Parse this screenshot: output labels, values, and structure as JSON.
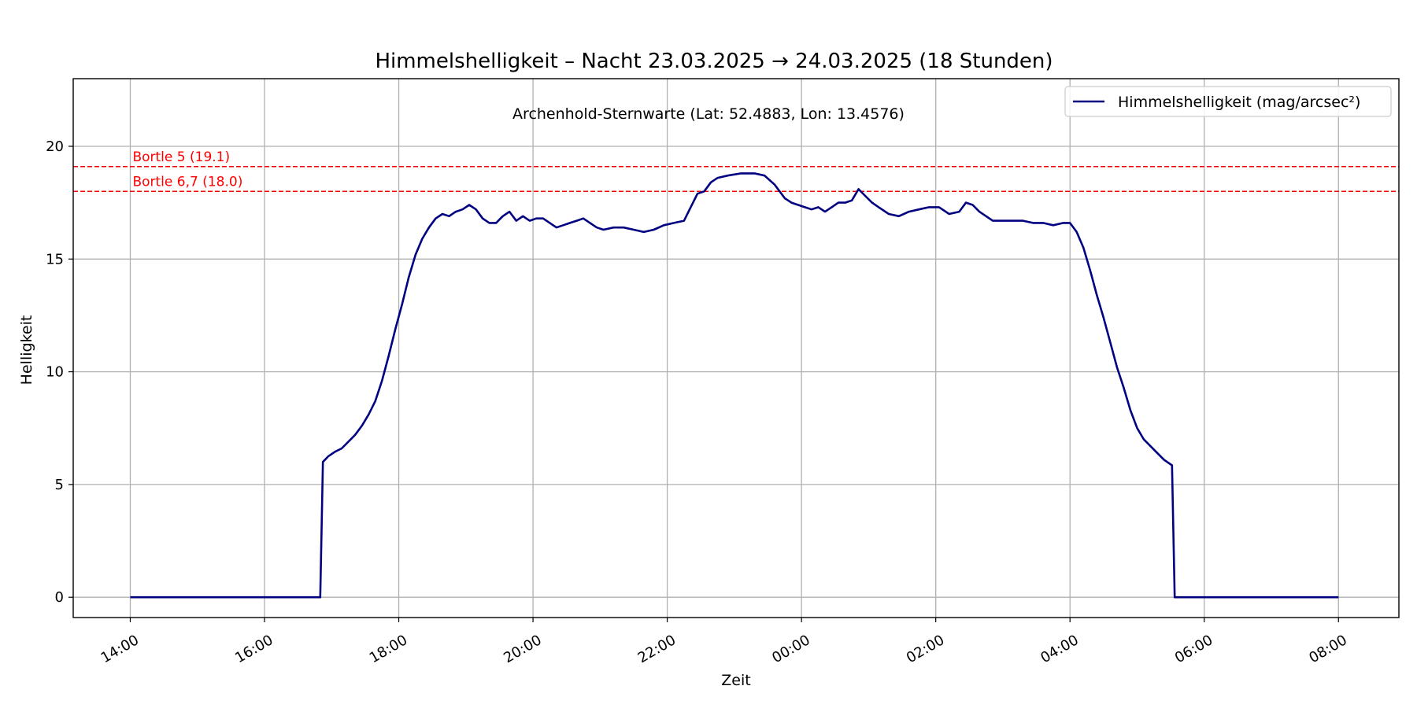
{
  "chart_data": {
    "type": "line",
    "title": "Himmelshelligkeit – Nacht 23.03.2025 → 24.03.2025 (18 Stunden)",
    "subtitle": "Archenhold-Sternwarte (Lat: 52.4883, Lon: 13.4576)",
    "xlabel": "Zeit",
    "ylabel": "Helligkeit",
    "x_unit": "hours since 23.03.2025 00:00",
    "xlim": [
      13.15,
      32.9
    ],
    "ylim": [
      -0.9,
      23.0
    ],
    "x_ticks": [
      {
        "x": 14,
        "label": "14:00"
      },
      {
        "x": 16,
        "label": "16:00"
      },
      {
        "x": 18,
        "label": "18:00"
      },
      {
        "x": 20,
        "label": "20:00"
      },
      {
        "x": 22,
        "label": "22:00"
      },
      {
        "x": 24,
        "label": "00:00"
      },
      {
        "x": 26,
        "label": "02:00"
      },
      {
        "x": 28,
        "label": "04:00"
      },
      {
        "x": 30,
        "label": "06:00"
      },
      {
        "x": 32,
        "label": "08:00"
      }
    ],
    "y_ticks": [
      0,
      5,
      10,
      15,
      20
    ],
    "grid": true,
    "legend": {
      "placement": "top-right",
      "entries": [
        "Himmelshelligkeit (mag/arcsec²)"
      ]
    },
    "reference_lines": [
      {
        "y": 19.1,
        "label": "Bortle 5 (19.1)",
        "color": "#ff0000"
      },
      {
        "y": 18.0,
        "label": "Bortle 6,7 (18.0)",
        "color": "#ff0000"
      }
    ],
    "series": [
      {
        "name": "Himmelshelligkeit (mag/arcsec²)",
        "color": "#000080",
        "points": [
          [
            14.0,
            0.0
          ],
          [
            16.83,
            0.0
          ],
          [
            16.87,
            6.0
          ],
          [
            16.95,
            6.25
          ],
          [
            17.05,
            6.45
          ],
          [
            17.15,
            6.6
          ],
          [
            17.25,
            6.9
          ],
          [
            17.35,
            7.2
          ],
          [
            17.45,
            7.6
          ],
          [
            17.55,
            8.1
          ],
          [
            17.65,
            8.7
          ],
          [
            17.75,
            9.6
          ],
          [
            17.85,
            10.7
          ],
          [
            17.95,
            11.9
          ],
          [
            18.05,
            13.0
          ],
          [
            18.15,
            14.2
          ],
          [
            18.25,
            15.2
          ],
          [
            18.35,
            15.9
          ],
          [
            18.45,
            16.4
          ],
          [
            18.55,
            16.8
          ],
          [
            18.65,
            17.0
          ],
          [
            18.75,
            16.9
          ],
          [
            18.85,
            17.1
          ],
          [
            18.95,
            17.2
          ],
          [
            19.05,
            17.4
          ],
          [
            19.15,
            17.2
          ],
          [
            19.25,
            16.8
          ],
          [
            19.35,
            16.6
          ],
          [
            19.45,
            16.6
          ],
          [
            19.55,
            16.9
          ],
          [
            19.65,
            17.1
          ],
          [
            19.75,
            16.7
          ],
          [
            19.85,
            16.9
          ],
          [
            19.95,
            16.7
          ],
          [
            20.05,
            16.8
          ],
          [
            20.15,
            16.8
          ],
          [
            20.25,
            16.6
          ],
          [
            20.35,
            16.4
          ],
          [
            20.45,
            16.5
          ],
          [
            20.55,
            16.6
          ],
          [
            20.65,
            16.7
          ],
          [
            20.75,
            16.8
          ],
          [
            20.85,
            16.6
          ],
          [
            20.95,
            16.4
          ],
          [
            21.05,
            16.3
          ],
          [
            21.2,
            16.4
          ],
          [
            21.35,
            16.4
          ],
          [
            21.5,
            16.3
          ],
          [
            21.65,
            16.2
          ],
          [
            21.8,
            16.3
          ],
          [
            21.95,
            16.5
          ],
          [
            22.1,
            16.6
          ],
          [
            22.25,
            16.7
          ],
          [
            22.35,
            17.3
          ],
          [
            22.45,
            17.9
          ],
          [
            22.55,
            18.0
          ],
          [
            22.65,
            18.4
          ],
          [
            22.75,
            18.6
          ],
          [
            22.9,
            18.7
          ],
          [
            23.1,
            18.8
          ],
          [
            23.3,
            18.8
          ],
          [
            23.45,
            18.7
          ],
          [
            23.6,
            18.3
          ],
          [
            23.75,
            17.7
          ],
          [
            23.85,
            17.5
          ],
          [
            23.95,
            17.4
          ],
          [
            24.05,
            17.3
          ],
          [
            24.15,
            17.2
          ],
          [
            24.25,
            17.3
          ],
          [
            24.35,
            17.1
          ],
          [
            24.45,
            17.3
          ],
          [
            24.55,
            17.5
          ],
          [
            24.65,
            17.5
          ],
          [
            24.75,
            17.6
          ],
          [
            24.85,
            18.1
          ],
          [
            24.95,
            17.8
          ],
          [
            25.05,
            17.5
          ],
          [
            25.15,
            17.3
          ],
          [
            25.3,
            17.0
          ],
          [
            25.45,
            16.9
          ],
          [
            25.6,
            17.1
          ],
          [
            25.75,
            17.2
          ],
          [
            25.9,
            17.3
          ],
          [
            26.05,
            17.3
          ],
          [
            26.2,
            17.0
          ],
          [
            26.35,
            17.1
          ],
          [
            26.45,
            17.5
          ],
          [
            26.55,
            17.4
          ],
          [
            26.65,
            17.1
          ],
          [
            26.75,
            16.9
          ],
          [
            26.85,
            16.7
          ],
          [
            27.0,
            16.7
          ],
          [
            27.15,
            16.7
          ],
          [
            27.3,
            16.7
          ],
          [
            27.45,
            16.6
          ],
          [
            27.6,
            16.6
          ],
          [
            27.75,
            16.5
          ],
          [
            27.9,
            16.6
          ],
          [
            28.0,
            16.6
          ],
          [
            28.1,
            16.2
          ],
          [
            28.2,
            15.5
          ],
          [
            28.3,
            14.5
          ],
          [
            28.4,
            13.4
          ],
          [
            28.5,
            12.4
          ],
          [
            28.6,
            11.3
          ],
          [
            28.7,
            10.2
          ],
          [
            28.8,
            9.3
          ],
          [
            28.9,
            8.3
          ],
          [
            29.0,
            7.5
          ],
          [
            29.1,
            7.0
          ],
          [
            29.2,
            6.7
          ],
          [
            29.3,
            6.4
          ],
          [
            29.4,
            6.1
          ],
          [
            29.52,
            5.85
          ],
          [
            29.56,
            0.0
          ],
          [
            32.0,
            0.0
          ]
        ]
      }
    ]
  }
}
